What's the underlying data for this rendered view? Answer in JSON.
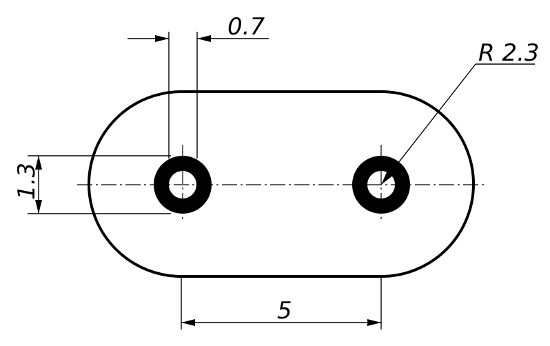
{
  "drawing": {
    "dimensions": {
      "hole_offset": "0.7",
      "hole_height": "1.3",
      "radius": "R 2.3",
      "center_distance": "5"
    },
    "colors": {
      "line": "#000000",
      "background": "#ffffff"
    }
  }
}
